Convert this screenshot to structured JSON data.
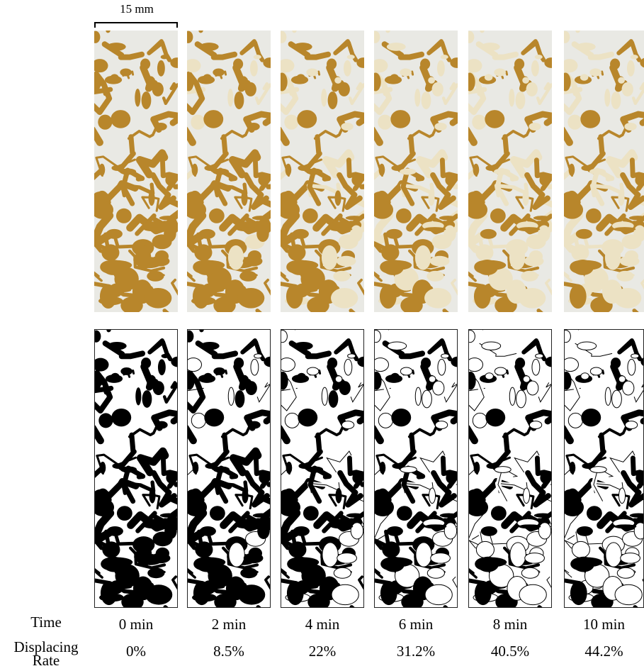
{
  "scale_bar": {
    "label": "15 mm"
  },
  "row_labels": {
    "time": "Time",
    "displacing_rate_line1": "Displacing",
    "displacing_rate_line2": "Rate"
  },
  "columns": [
    {
      "time": "0 min",
      "rate": "0%",
      "displaced": 0.0
    },
    {
      "time": "2 min",
      "rate": "8.5%",
      "displaced": 0.085
    },
    {
      "time": "4 min",
      "rate": "22%",
      "displaced": 0.22
    },
    {
      "time": "6 min",
      "rate": "31.2%",
      "displaced": 0.312
    },
    {
      "time": "8 min",
      "rate": "40.5%",
      "displaced": 0.405
    },
    {
      "time": "10 min",
      "rate": "44.2%",
      "displaced": 0.442
    }
  ],
  "colors": {
    "oil": "#b8862b",
    "displaced": "#ece2c4",
    "grain": "#e9e9e4",
    "binary_pore": "#000000",
    "binary_grain": "#ffffff"
  }
}
